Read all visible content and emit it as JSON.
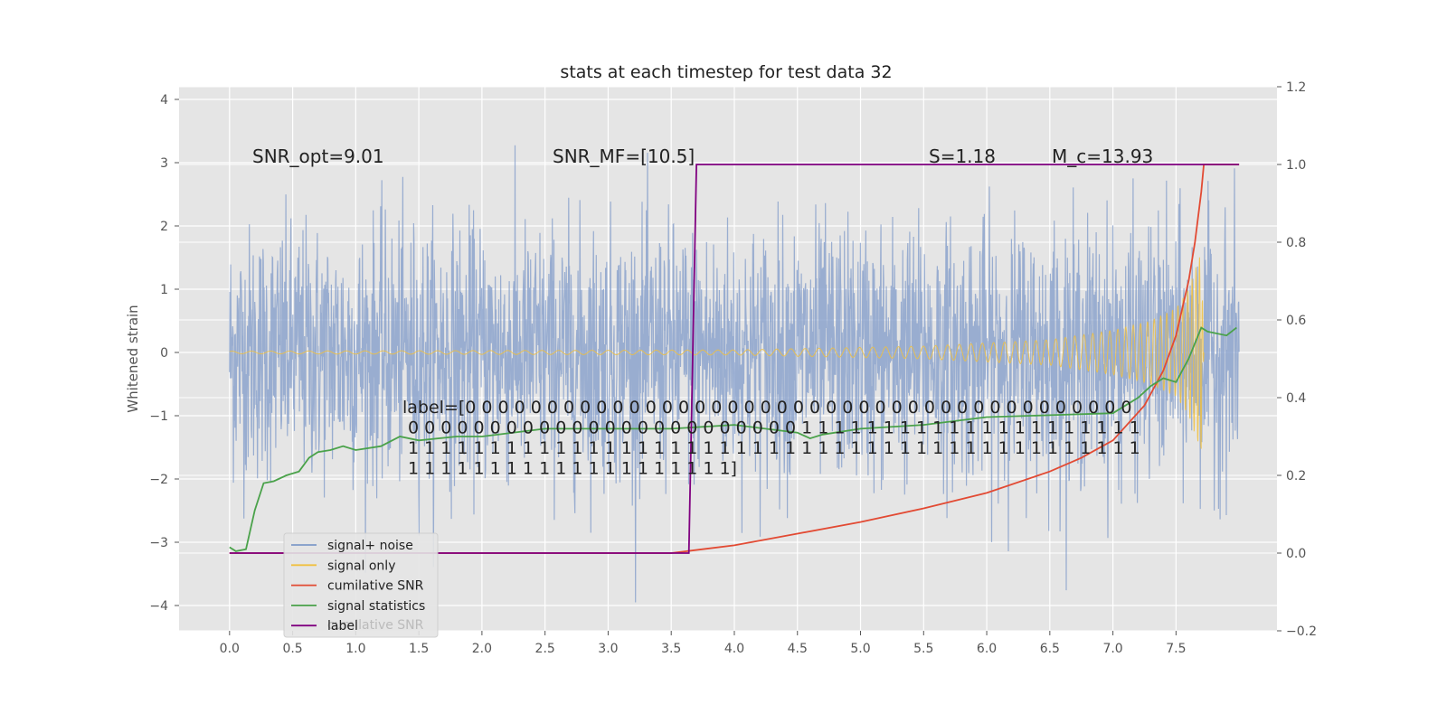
{
  "chart_data": {
    "type": "line",
    "title": "stats at each timestep for test data 32",
    "ylabel": "Whitened strain",
    "xlabel": "",
    "xlim": [
      -0.4,
      8.3
    ],
    "ylim": [
      -4.4,
      4.2
    ],
    "y2lim": [
      -0.2,
      1.2
    ],
    "grid": true,
    "x_ticks": [
      "0.0",
      "0.5",
      "1.0",
      "1.5",
      "2.0",
      "2.5",
      "3.0",
      "3.5",
      "4.0",
      "4.5",
      "5.0",
      "5.5",
      "6.0",
      "6.5",
      "7.0",
      "7.5"
    ],
    "y_ticks": [
      "4",
      "3",
      "2",
      "1",
      "0",
      "−1",
      "−2",
      "−3",
      "−4"
    ],
    "y2_ticks": [
      "1.2",
      "1.0",
      "0.8",
      "0.6",
      "0.4",
      "0.2",
      "0.0",
      "−0.2"
    ],
    "annotations": [
      {
        "text": "SNR_opt=9.01"
      },
      {
        "text": "SNR_MF=[10.5]"
      },
      {
        "text": "S=1.18"
      },
      {
        "text": "M_c=13.93"
      }
    ],
    "label_text": [
      "label=[0 0 0 0 0 0 0 0 0 0 0 0 0 0 0 0 0 0 0 0 0 0 0 0 0 0 0 0 0 0 0 0 0 0 0 0 0 0 0 0 0",
      " 0 0 0 0 0 0 0 0 0 0 0 0 0 0 0 0 0 0 0 0 0 0 0 0 1 1 1 1 1 1 1 1 1 1 1 1 1 1 1 1 1 1 1 1 1",
      " 1 1 1 1 1 1 1 1 1 1 1 1 1 1 1 1 1 1 1 1 1 1 1 1 1 1 1 1 1 1 1 1 1 1 1 1 1 1 1 1 1 1 1 1 1",
      " 1 1 1 1 1 1 1 1 1 1 1 1 1 1 1 1 1 1 1 1]"
    ],
    "legend": {
      "placement": "lower-left",
      "items": [
        {
          "label": "signal+ noise",
          "color": "#7f9ac8"
        },
        {
          "label": "signal only",
          "color": "#f0c040"
        },
        {
          "label": "cumilative SNR",
          "color": "#e24a33"
        },
        {
          "label": "signal statistics",
          "color": "#4aa24a"
        },
        {
          "label": "label",
          "color": "#800080"
        }
      ],
      "ghost_text": "cumilative SNR"
    },
    "series": [
      {
        "name": "signal+ noise",
        "axis": "left",
        "style": "noise",
        "x_range": [
          0,
          8.0
        ],
        "amplitude_sigma": 1.0,
        "color": "#7f9ac8"
      },
      {
        "name": "signal only",
        "axis": "left",
        "style": "chirp",
        "x_range": [
          0,
          7.72
        ],
        "envelope": {
          "x": [
            0,
            4.0,
            5.5,
            6.5,
            7.0,
            7.3,
            7.5,
            7.6,
            7.7,
            7.72
          ],
          "amp": [
            0.02,
            0.04,
            0.1,
            0.2,
            0.35,
            0.5,
            0.7,
            1.0,
            1.6,
            0.0
          ]
        },
        "color": "#f0c040"
      },
      {
        "name": "cumilative SNR",
        "axis": "right",
        "color": "#e24a33",
        "x": [
          0,
          3.5,
          3.75,
          4.0,
          4.5,
          5.0,
          5.5,
          6.0,
          6.5,
          6.75,
          7.0,
          7.25,
          7.4,
          7.5,
          7.6,
          7.65,
          7.7,
          7.72,
          8.0
        ],
        "y": [
          0.0,
          0.0,
          0.01,
          0.02,
          0.05,
          0.08,
          0.115,
          0.155,
          0.21,
          0.245,
          0.29,
          0.38,
          0.47,
          0.56,
          0.7,
          0.8,
          0.93,
          1.0,
          1.0
        ]
      },
      {
        "name": "signal statistics",
        "axis": "right",
        "color": "#4aa24a",
        "x": [
          0,
          0.05,
          0.13,
          0.2,
          0.27,
          0.35,
          0.45,
          0.55,
          0.63,
          0.7,
          0.8,
          0.9,
          1.0,
          1.2,
          1.35,
          1.5,
          1.8,
          2.0,
          2.5,
          3.0,
          3.5,
          4.0,
          4.5,
          4.6,
          4.7,
          5.0,
          5.5,
          6.0,
          6.5,
          7.0,
          7.2,
          7.3,
          7.4,
          7.5,
          7.55,
          7.6,
          7.7,
          7.75,
          7.9,
          7.98
        ],
        "y": [
          0.015,
          0.005,
          0.01,
          0.11,
          0.18,
          0.185,
          0.2,
          0.21,
          0.245,
          0.26,
          0.265,
          0.275,
          0.265,
          0.275,
          0.3,
          0.29,
          0.3,
          0.3,
          0.32,
          0.32,
          0.32,
          0.33,
          0.31,
          0.295,
          0.305,
          0.32,
          0.33,
          0.35,
          0.355,
          0.36,
          0.4,
          0.43,
          0.45,
          0.44,
          0.47,
          0.5,
          0.58,
          0.57,
          0.56,
          0.58
        ]
      },
      {
        "name": "label",
        "axis": "right",
        "color": "#800080",
        "x": [
          0,
          3.64,
          3.7,
          8.0
        ],
        "y": [
          0,
          0,
          1,
          1
        ]
      }
    ]
  }
}
